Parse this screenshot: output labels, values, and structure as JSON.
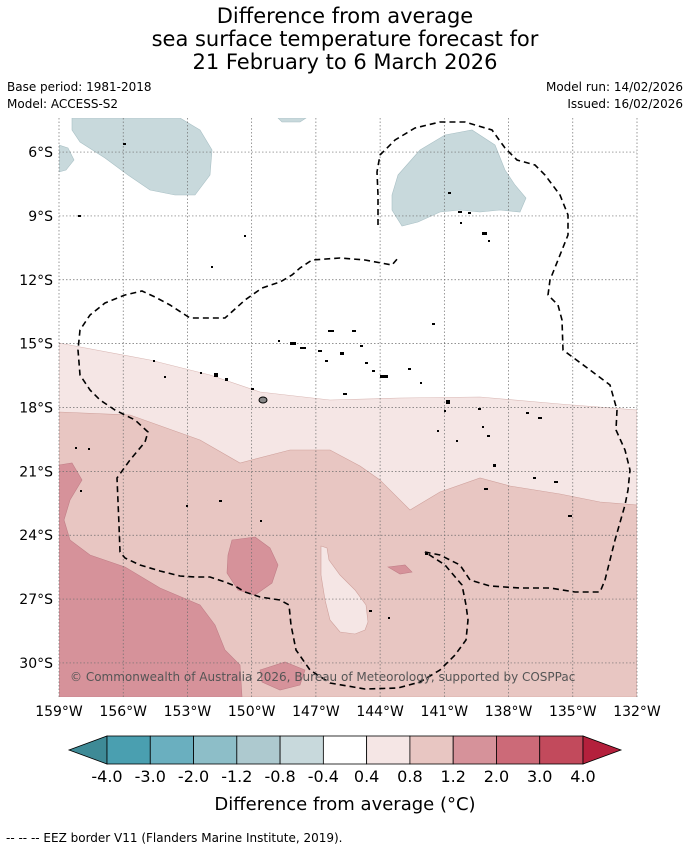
{
  "header": {
    "title_line1": "Difference from average",
    "title_line2": "sea surface temperature forecast for",
    "title_line3": "21 February to 6 March 2026",
    "base_period": "Base period: 1981-2018",
    "model": "Model: ACCESS-S2",
    "model_run": "Model run: 14/02/2026",
    "issued": "Issued: 16/02/2026"
  },
  "map": {
    "lat_labels": [
      "6°S",
      "9°S",
      "12°S",
      "15°S",
      "18°S",
      "21°S",
      "24°S",
      "27°S",
      "30°S"
    ],
    "lat_values": [
      -6,
      -9,
      -12,
      -15,
      -18,
      -21,
      -24,
      -27,
      -30
    ],
    "lon_labels": [
      "159°W",
      "156°W",
      "153°W",
      "150°W",
      "147°W",
      "144°W",
      "141°W",
      "138°W",
      "135°W",
      "132°W"
    ],
    "lon_values": [
      -159,
      -156,
      -153,
      -150,
      -147,
      -144,
      -141,
      -138,
      -135,
      -132
    ],
    "extent": {
      "lon_min": -159,
      "lon_max": -132,
      "lat_top": -4.4,
      "lat_bottom": -31.6
    },
    "copyright": "© Commonwealth of Australia 2026, Bureau of Meteorology, supported by COSPPac"
  },
  "colorbar": {
    "labels": [
      "-4.0",
      "-3.0",
      "-2.0",
      "-1.2",
      "-0.8",
      "-0.4",
      "0.4",
      "0.8",
      "1.2",
      "2.0",
      "3.0",
      "4.0"
    ],
    "colors": [
      "#4a9fb0",
      "#6aafbf",
      "#8dbec8",
      "#adc9cf",
      "#c8d9dc",
      "#ffffff",
      "#f5e6e5",
      "#e8c6c2",
      "#d6929a",
      "#cc6a78",
      "#c24a5c"
    ],
    "under_color": "#3e8a96",
    "over_color": "#b4203c",
    "title": "Difference from average (°C)"
  },
  "legend": {
    "eez_label": "--  --  -- EEZ border V11 (Flanders Marine Institute, 2019)."
  }
}
